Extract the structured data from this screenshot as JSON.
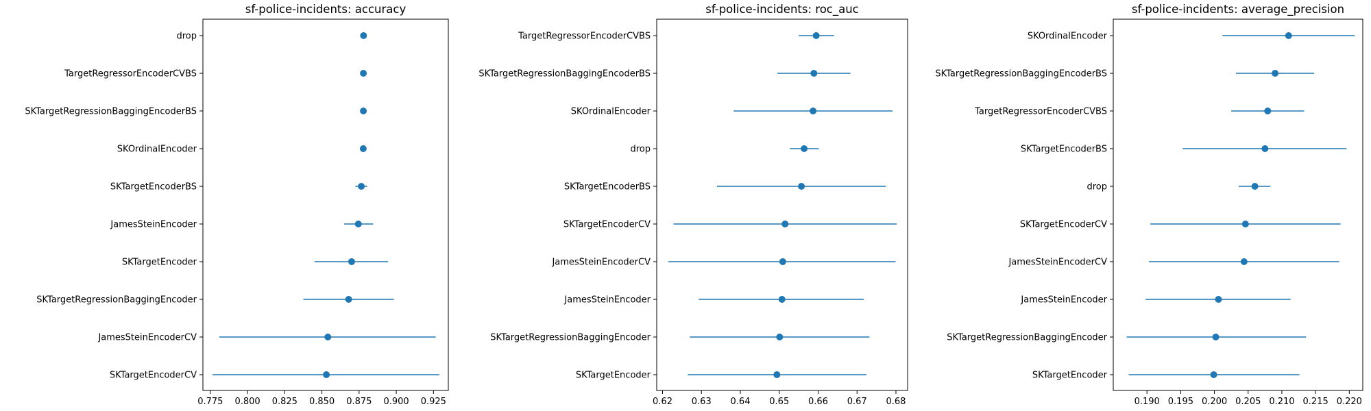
{
  "chart_data": [
    {
      "type": "errorbar",
      "title": "sf-police-incidents: accuracy",
      "xlim": [
        0.77,
        0.935
      ],
      "xticks": [
        0.775,
        0.8,
        0.825,
        0.85,
        0.875,
        0.9,
        0.925
      ],
      "xtick_labels": [
        "0.775",
        "0.800",
        "0.825",
        "0.850",
        "0.875",
        "0.900",
        "0.925"
      ],
      "categories": [
        "drop",
        "TargetRegressorEncoderCVBS",
        "SKTargetRegressionBaggingEncoderBS",
        "SKOrdinalEncoder",
        "SKTargetEncoderBS",
        "JamesSteinEncoder",
        "SKTargetEncoder",
        "SKTargetRegressionBaggingEncoder",
        "JamesSteinEncoderCV",
        "SKTargetEncoderCV"
      ],
      "mean": [
        0.878,
        0.8779,
        0.8779,
        0.8778,
        0.8765,
        0.8745,
        0.87,
        0.868,
        0.854,
        0.853
      ],
      "lower": [
        0.878,
        0.8779,
        0.8779,
        0.8777,
        0.8725,
        0.865,
        0.845,
        0.8375,
        0.781,
        0.7765
      ],
      "upper": [
        0.878,
        0.8779,
        0.8779,
        0.8779,
        0.8805,
        0.8845,
        0.8945,
        0.8985,
        0.9265,
        0.929
      ]
    },
    {
      "type": "errorbar",
      "title": "sf-police-incidents: roc_auc",
      "xlim": [
        0.6185,
        0.683
      ],
      "xticks": [
        0.62,
        0.63,
        0.64,
        0.65,
        0.66,
        0.67,
        0.68
      ],
      "xtick_labels": [
        "0.62",
        "0.63",
        "0.64",
        "0.65",
        "0.66",
        "0.67",
        "0.68"
      ],
      "categories": [
        "TargetRegressorEncoderCVBS",
        "SKTargetRegressionBaggingEncoderBS",
        "SKOrdinalEncoder",
        "drop",
        "SKTargetEncoderBS",
        "SKTargetEncoderCV",
        "JamesSteinEncoderCV",
        "JamesSteinEncoder",
        "SKTargetRegressionBaggingEncoder",
        "SKTargetEncoder"
      ],
      "mean": [
        0.6595,
        0.6589,
        0.6587,
        0.6564,
        0.6557,
        0.6515,
        0.6509,
        0.6507,
        0.6501,
        0.6494
      ],
      "lower": [
        0.655,
        0.6495,
        0.6383,
        0.6527,
        0.634,
        0.6228,
        0.6215,
        0.6293,
        0.627,
        0.6265
      ],
      "upper": [
        0.6641,
        0.6683,
        0.6791,
        0.6602,
        0.6774,
        0.6802,
        0.6799,
        0.6717,
        0.6732,
        0.6724
      ]
    },
    {
      "type": "errorbar",
      "title": "sf-police-incidents: average_precision",
      "xlim": [
        0.185,
        0.222
      ],
      "xticks": [
        0.19,
        0.195,
        0.2,
        0.205,
        0.21,
        0.215,
        0.22
      ],
      "xtick_labels": [
        "0.190",
        "0.195",
        "0.200",
        "0.205",
        "0.210",
        "0.215",
        "0.220"
      ],
      "categories": [
        "SKOrdinalEncoder",
        "SKTargetRegressionBaggingEncoderBS",
        "TargetRegressorEncoderCVBS",
        "SKTargetEncoderBS",
        "drop",
        "SKTargetEncoderCV",
        "JamesSteinEncoderCV",
        "JamesSteinEncoder",
        "SKTargetRegressionBaggingEncoder",
        "SKTargetEncoder"
      ],
      "mean": [
        0.211,
        0.209,
        0.2079,
        0.2075,
        0.206,
        0.2046,
        0.2044,
        0.2006,
        0.2002,
        0.1999
      ],
      "lower": [
        0.2012,
        0.2032,
        0.2025,
        0.1953,
        0.2036,
        0.1905,
        0.1903,
        0.1898,
        0.187,
        0.1873
      ],
      "upper": [
        0.2208,
        0.2148,
        0.2133,
        0.2196,
        0.2083,
        0.2187,
        0.2185,
        0.2113,
        0.2136,
        0.2126
      ]
    }
  ],
  "colors": {
    "series": "#1f77b4",
    "axis": "#000000"
  }
}
